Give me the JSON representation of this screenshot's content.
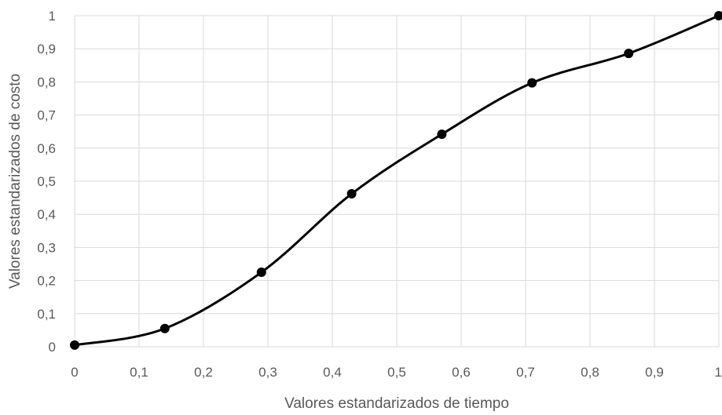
{
  "chart_data": {
    "type": "scatter",
    "xlabel": "Valores estandarizados de tiempo",
    "ylabel": "Valores estandarizados de costo",
    "xlim": [
      0,
      1
    ],
    "ylim": [
      0,
      1
    ],
    "x_ticks": [
      "0",
      "0,1",
      "0,2",
      "0,3",
      "0,4",
      "0,5",
      "0,6",
      "0,7",
      "0,8",
      "0,9",
      "1"
    ],
    "y_ticks": [
      "0",
      "0,1",
      "0,2",
      "0,3",
      "0,4",
      "0,5",
      "0,6",
      "0,7",
      "0,8",
      "0,9",
      "1"
    ],
    "grid": true,
    "smooth": true,
    "line_color": "#000000",
    "grid_color": "#d9d9d9",
    "series": [
      {
        "x": [
          0,
          0.14,
          0.29,
          0.43,
          0.57,
          0.71,
          0.86,
          1
        ],
        "y": [
          0.005,
          0.055,
          0.225,
          0.462,
          0.642,
          0.797,
          0.886,
          1
        ]
      }
    ]
  }
}
